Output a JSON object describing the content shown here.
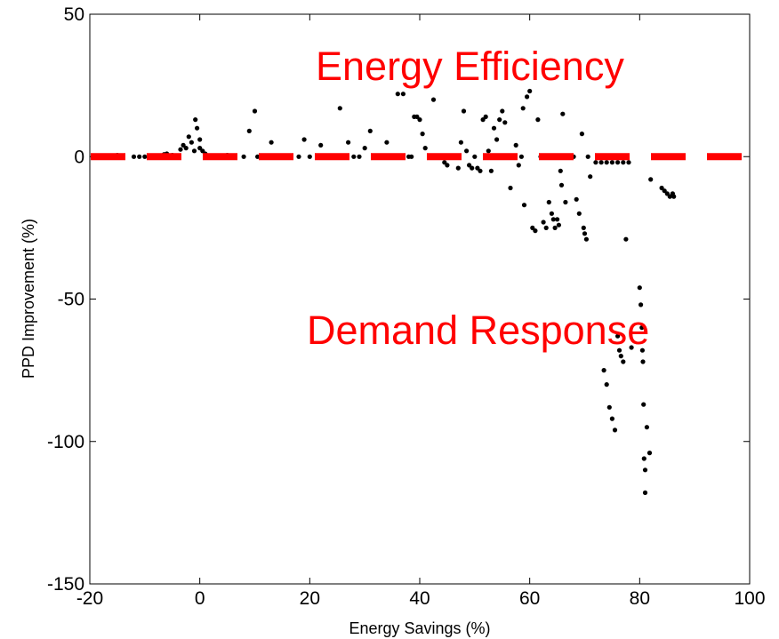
{
  "chart_data": {
    "type": "scatter",
    "xlabel": "Energy Savings (%)",
    "ylabel": "PPD Improvement (%)",
    "xlim": [
      -20,
      100
    ],
    "ylim": [
      -150,
      50
    ],
    "xticks": [
      "-20",
      "0",
      "20",
      "40",
      "60",
      "80",
      "100"
    ],
    "yticks": [
      "50",
      "0",
      "-50",
      "-100",
      "-150"
    ],
    "grid": false,
    "reference_line": {
      "y": 0,
      "style": "dashed",
      "color": "#ff0000"
    },
    "marker_color": "#000000",
    "annotations": [
      {
        "text": "Energy Efficiency",
        "color": "#ff0000"
      },
      {
        "text": "Demand Response",
        "color": "#ff0000"
      }
    ],
    "series": [
      {
        "points": [
          [
            -15,
            0.5
          ],
          [
            -14.5,
            0
          ],
          [
            -12,
            0
          ],
          [
            -11,
            0
          ],
          [
            -10,
            0
          ],
          [
            -9,
            0
          ],
          [
            -8,
            0.3
          ],
          [
            -7,
            0
          ],
          [
            -6.5,
            0.8
          ],
          [
            -6,
            1
          ],
          [
            -5,
            0.5
          ],
          [
            -4,
            0
          ],
          [
            -3.5,
            2.5
          ],
          [
            -3,
            4
          ],
          [
            -2.5,
            3
          ],
          [
            -2,
            7
          ],
          [
            -1.5,
            5
          ],
          [
            -1,
            2
          ],
          [
            -0.8,
            13
          ],
          [
            -0.5,
            10
          ],
          [
            0,
            6
          ],
          [
            0,
            3
          ],
          [
            0.5,
            2
          ],
          [
            1,
            1
          ],
          [
            1.5,
            0
          ],
          [
            2,
            0
          ],
          [
            3,
            0
          ],
          [
            4,
            0
          ],
          [
            5,
            0.5
          ],
          [
            6,
            0
          ],
          [
            8,
            0
          ],
          [
            9,
            9
          ],
          [
            10,
            16
          ],
          [
            10.5,
            0
          ],
          [
            11,
            0
          ],
          [
            12,
            0
          ],
          [
            13,
            5
          ],
          [
            15,
            0
          ],
          [
            18,
            0
          ],
          [
            19,
            6
          ],
          [
            20,
            0
          ],
          [
            22,
            4
          ],
          [
            24,
            0
          ],
          [
            25,
            0
          ],
          [
            25.5,
            17
          ],
          [
            27,
            5
          ],
          [
            28,
            0
          ],
          [
            29,
            0
          ],
          [
            30,
            3
          ],
          [
            31,
            9
          ],
          [
            33,
            0
          ],
          [
            34,
            5
          ],
          [
            35,
            0
          ],
          [
            36,
            22
          ],
          [
            37,
            22
          ],
          [
            38,
            0
          ],
          [
            38.5,
            0
          ],
          [
            39,
            14
          ],
          [
            39.5,
            14
          ],
          [
            40,
            13
          ],
          [
            40.5,
            8
          ],
          [
            41,
            3
          ],
          [
            42,
            0
          ],
          [
            42.5,
            20
          ],
          [
            43,
            0
          ],
          [
            44,
            0
          ],
          [
            44.5,
            -2
          ],
          [
            45,
            -3
          ],
          [
            46,
            0
          ],
          [
            47,
            -4
          ],
          [
            47.5,
            5
          ],
          [
            48,
            16
          ],
          [
            48.5,
            2
          ],
          [
            49,
            -3
          ],
          [
            49.5,
            -4
          ],
          [
            50,
            0
          ],
          [
            50.5,
            -4
          ],
          [
            51,
            -5
          ],
          [
            51.5,
            13
          ],
          [
            52,
            14
          ],
          [
            52.5,
            2
          ],
          [
            53,
            -5
          ],
          [
            53.5,
            10
          ],
          [
            54,
            6
          ],
          [
            54.5,
            13
          ],
          [
            55,
            16
          ],
          [
            55.5,
            12
          ],
          [
            56,
            0
          ],
          [
            56.5,
            -11
          ],
          [
            57,
            0
          ],
          [
            57.5,
            4
          ],
          [
            58,
            -3
          ],
          [
            58.5,
            0
          ],
          [
            58.8,
            17
          ],
          [
            59,
            -17
          ],
          [
            59.5,
            21
          ],
          [
            60,
            23
          ],
          [
            60.5,
            -25
          ],
          [
            61,
            -26
          ],
          [
            61.5,
            13
          ],
          [
            62,
            0
          ],
          [
            62.5,
            -23
          ],
          [
            63,
            -25
          ],
          [
            63.5,
            -16
          ],
          [
            64,
            -20
          ],
          [
            64.3,
            -22
          ],
          [
            64.6,
            -25
          ],
          [
            65,
            -22
          ],
          [
            65.3,
            -24
          ],
          [
            65.6,
            -5
          ],
          [
            65.8,
            -10
          ],
          [
            66,
            15
          ],
          [
            66.5,
            -16
          ],
          [
            68,
            0
          ],
          [
            68.5,
            -15
          ],
          [
            69,
            -20
          ],
          [
            69.5,
            8
          ],
          [
            69.8,
            -25
          ],
          [
            70,
            -27
          ],
          [
            70.3,
            -29
          ],
          [
            70.6,
            0
          ],
          [
            71,
            -7
          ],
          [
            72,
            -2
          ],
          [
            73,
            -2
          ],
          [
            74,
            -2
          ],
          [
            75,
            -2
          ],
          [
            76,
            -2
          ],
          [
            77,
            -2
          ],
          [
            77.5,
            -29
          ],
          [
            78,
            -2
          ],
          [
            73.5,
            -75
          ],
          [
            74,
            -80
          ],
          [
            74.5,
            -88
          ],
          [
            75,
            -92
          ],
          [
            75.5,
            -96
          ],
          [
            76,
            -63
          ],
          [
            76.3,
            -68
          ],
          [
            76.6,
            -70
          ],
          [
            77,
            -72
          ],
          [
            78.5,
            -67
          ],
          [
            80,
            -46
          ],
          [
            80.2,
            -52
          ],
          [
            80.4,
            -60
          ],
          [
            80.5,
            -68
          ],
          [
            80.6,
            -72
          ],
          [
            80.7,
            -87
          ],
          [
            80.8,
            -106
          ],
          [
            81,
            -110
          ],
          [
            81,
            -118
          ],
          [
            81.3,
            -95
          ],
          [
            81.8,
            -104
          ],
          [
            82,
            -8
          ],
          [
            84,
            -11
          ],
          [
            84.5,
            -12
          ],
          [
            85,
            -13
          ],
          [
            85.5,
            -14
          ],
          [
            86,
            -13
          ],
          [
            86.2,
            -14
          ]
        ]
      }
    ]
  }
}
